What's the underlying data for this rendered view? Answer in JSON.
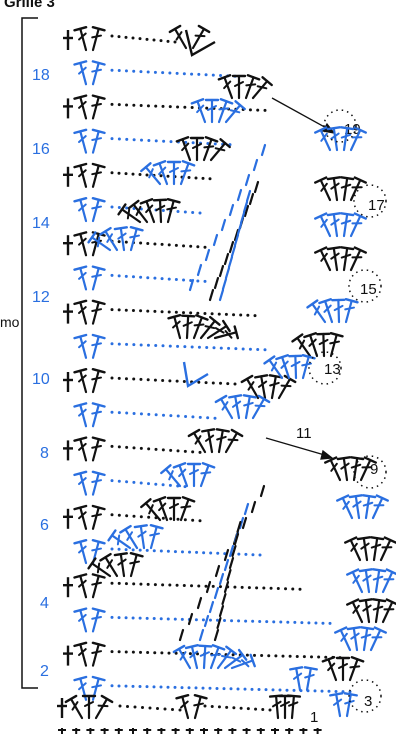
{
  "title": "Grille 3",
  "repeat_label": "mo",
  "colors": {
    "black": "#111111",
    "blue": "#2a6fe0"
  },
  "row_numbers_left": [
    "18",
    "16",
    "14",
    "12",
    "10",
    "8",
    "6",
    "4",
    "2"
  ],
  "row_numbers_right": [
    "19",
    "17",
    "15",
    "13",
    "11",
    "9",
    "3",
    "1"
  ]
}
